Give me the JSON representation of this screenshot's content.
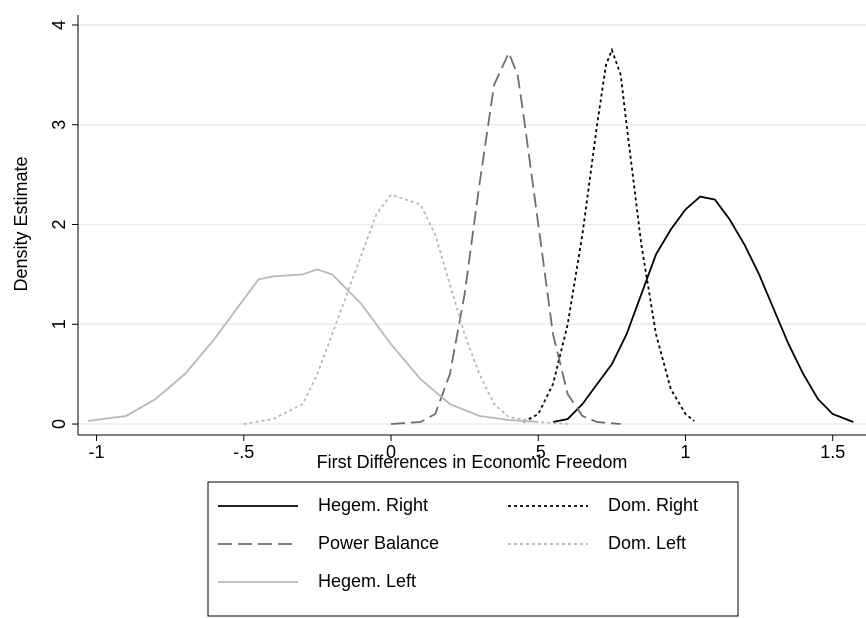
{
  "chart_data": {
    "type": "line",
    "xlabel": "First Differences in Economic Freedom",
    "ylabel": "Density Estimate",
    "xlim": [
      -1.063,
      1.613
    ],
    "ylim": [
      -0.11,
      4.1
    ],
    "xticks": [
      -1,
      {
        "value": -0.5,
        "label": "-.5"
      },
      0,
      {
        "value": 0.5,
        "label": ".5"
      },
      1,
      1.5
    ],
    "yticks": [
      0,
      1,
      2,
      3,
      4
    ],
    "grid": true,
    "legend": "bottom",
    "series": [
      {
        "name": "Hegem. Right",
        "color": "#000000",
        "dash": "solid",
        "x": [
          0.55,
          0.6,
          0.65,
          0.7,
          0.75,
          0.8,
          0.85,
          0.9,
          0.95,
          1.0,
          1.05,
          1.1,
          1.15,
          1.2,
          1.25,
          1.3,
          1.35,
          1.4,
          1.45,
          1.5,
          1.57
        ],
        "values": [
          0.02,
          0.05,
          0.2,
          0.4,
          0.6,
          0.9,
          1.3,
          1.7,
          1.95,
          2.15,
          2.28,
          2.25,
          2.05,
          1.8,
          1.5,
          1.15,
          0.8,
          0.5,
          0.25,
          0.1,
          0.02
        ]
      },
      {
        "name": "Dom. Right",
        "color": "#000000",
        "dash": "dot",
        "x": [
          0.45,
          0.5,
          0.55,
          0.6,
          0.65,
          0.7,
          0.73,
          0.75,
          0.78,
          0.8,
          0.85,
          0.9,
          0.95,
          1.0,
          1.03
        ],
        "values": [
          0.02,
          0.1,
          0.4,
          1.0,
          1.9,
          3.0,
          3.6,
          3.75,
          3.5,
          3.0,
          1.8,
          0.9,
          0.35,
          0.1,
          0.03
        ]
      },
      {
        "name": "Power Balance",
        "color": "#6e6e6e",
        "dash": "dash",
        "x": [
          0.0,
          0.1,
          0.15,
          0.2,
          0.25,
          0.3,
          0.35,
          0.4,
          0.43,
          0.45,
          0.5,
          0.55,
          0.6,
          0.65,
          0.7,
          0.78
        ],
        "values": [
          0.0,
          0.02,
          0.1,
          0.5,
          1.3,
          2.4,
          3.4,
          3.72,
          3.5,
          3.1,
          2.0,
          0.9,
          0.3,
          0.08,
          0.02,
          0.0
        ]
      },
      {
        "name": "Dom. Left",
        "color": "#b8b8b8",
        "dash": "dot",
        "x": [
          -0.5,
          -0.4,
          -0.3,
          -0.25,
          -0.2,
          -0.15,
          -0.1,
          -0.05,
          0.0,
          0.05,
          0.1,
          0.15,
          0.2,
          0.25,
          0.3,
          0.35,
          0.4,
          0.5,
          0.6
        ],
        "values": [
          0.0,
          0.05,
          0.2,
          0.5,
          0.9,
          1.3,
          1.7,
          2.1,
          2.3,
          2.25,
          2.2,
          1.9,
          1.4,
          0.9,
          0.5,
          0.2,
          0.07,
          0.02,
          0.0
        ]
      },
      {
        "name": "Hegem. Left",
        "color": "#b8b8b8",
        "dash": "solid",
        "x": [
          -1.03,
          -0.9,
          -0.8,
          -0.7,
          -0.6,
          -0.5,
          -0.45,
          -0.4,
          -0.3,
          -0.25,
          -0.2,
          -0.1,
          0.0,
          0.1,
          0.2,
          0.3,
          0.4,
          0.5
        ],
        "values": [
          0.03,
          0.08,
          0.25,
          0.5,
          0.85,
          1.25,
          1.45,
          1.48,
          1.5,
          1.55,
          1.5,
          1.2,
          0.8,
          0.45,
          0.2,
          0.08,
          0.04,
          0.02
        ]
      }
    ]
  }
}
